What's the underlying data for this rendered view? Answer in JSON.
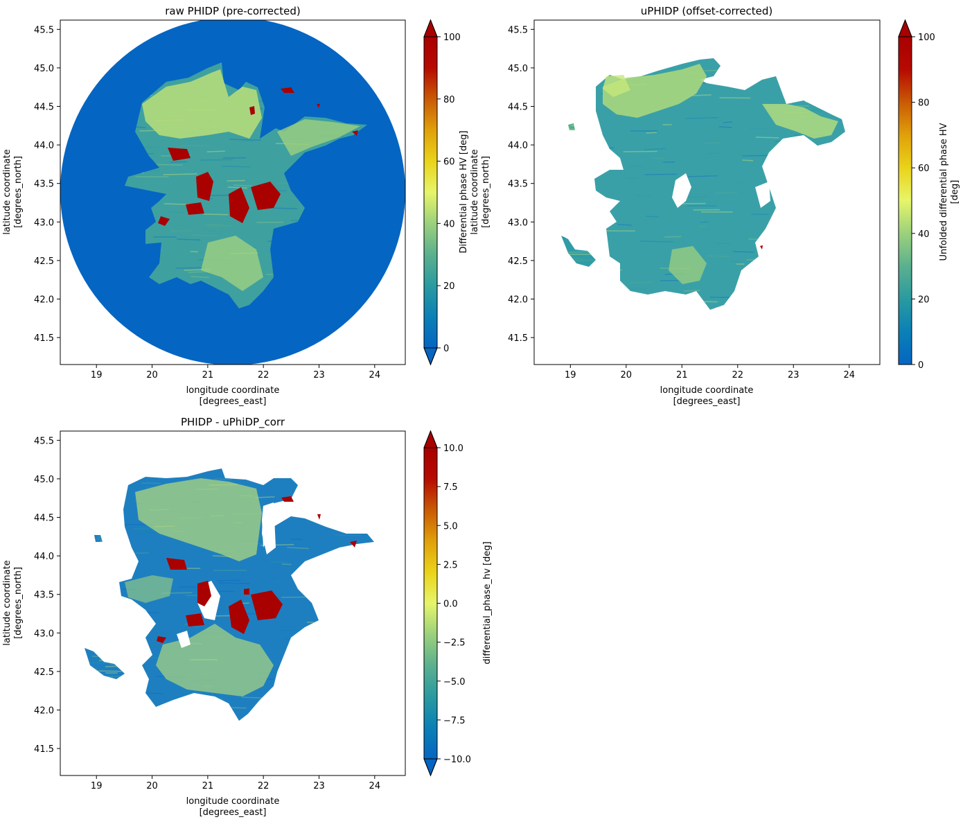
{
  "colormap": [
    "#0565c2",
    "#0b80b6",
    "#2a9aa0",
    "#5bb08e",
    "#9bd17c",
    "#e6f56a",
    "#ead31a",
    "#e0a00a",
    "#c95a05",
    "#b60a02",
    "#a90000"
  ],
  "chart_data": [
    {
      "type": "heatmap",
      "title": "raw PHIDP (pre-corrected)",
      "xlabel": "longitude coordinate\n[degrees_east]",
      "ylabel": "latitude coordinate\n[degrees_north]",
      "xlim": [
        18.35,
        24.55
      ],
      "ylim": [
        41.15,
        45.62
      ],
      "xticks": [
        "19",
        "20",
        "21",
        "22",
        "23",
        "24"
      ],
      "yticks": [
        "41.5",
        "42.0",
        "42.5",
        "43.0",
        "43.5",
        "44.0",
        "44.5",
        "45.0",
        "45.5"
      ],
      "field_background_value": 0,
      "radar_center": [
        21.42,
        43.38
      ],
      "colorbar": {
        "label": "Differential phase HV [deg]\nlatitude coordinate\n[degrees_north]",
        "range": [
          0,
          100
        ],
        "ticks": [
          "0",
          "20",
          "40",
          "60",
          "80",
          "100"
        ],
        "extend": "both"
      }
    },
    {
      "type": "heatmap",
      "title": "uPHIDP (offset-corrected)",
      "xlabel": "longitude coordinate\n[degrees_east]",
      "ylabel": "",
      "xlim": [
        18.35,
        24.55
      ],
      "ylim": [
        41.15,
        45.62
      ],
      "xticks": [
        "19",
        "20",
        "21",
        "22",
        "23",
        "24"
      ],
      "yticks": [
        "41.5",
        "42.0",
        "42.5",
        "43.0",
        "43.5",
        "44.0",
        "44.5",
        "45.0",
        "45.5"
      ],
      "colorbar": {
        "label": "Unfolded differential phase HV\n[deg]",
        "range": [
          0,
          100
        ],
        "ticks": [
          "0",
          "20",
          "40",
          "60",
          "80",
          "100"
        ],
        "extend": "max"
      }
    },
    {
      "type": "heatmap",
      "title": "PHIDP - uPhiDP_corr",
      "xlabel": "longitude coordinate\n[degrees_east]",
      "ylabel": "latitude coordinate\n[degrees_north]",
      "xlim": [
        18.35,
        24.55
      ],
      "ylim": [
        41.15,
        45.62
      ],
      "xticks": [
        "19",
        "20",
        "21",
        "22",
        "23",
        "24"
      ],
      "yticks": [
        "41.5",
        "42.0",
        "42.5",
        "43.0",
        "43.5",
        "44.0",
        "44.5",
        "45.0",
        "45.5"
      ],
      "colorbar": {
        "label": "differential_phase_hv [deg]",
        "range": [
          -10,
          10
        ],
        "ticks": [
          "−10.0",
          "−7.5",
          "−5.0",
          "−2.5",
          "0.0",
          "2.5",
          "5.0",
          "7.5",
          "10.0"
        ],
        "extend": "both"
      }
    }
  ]
}
